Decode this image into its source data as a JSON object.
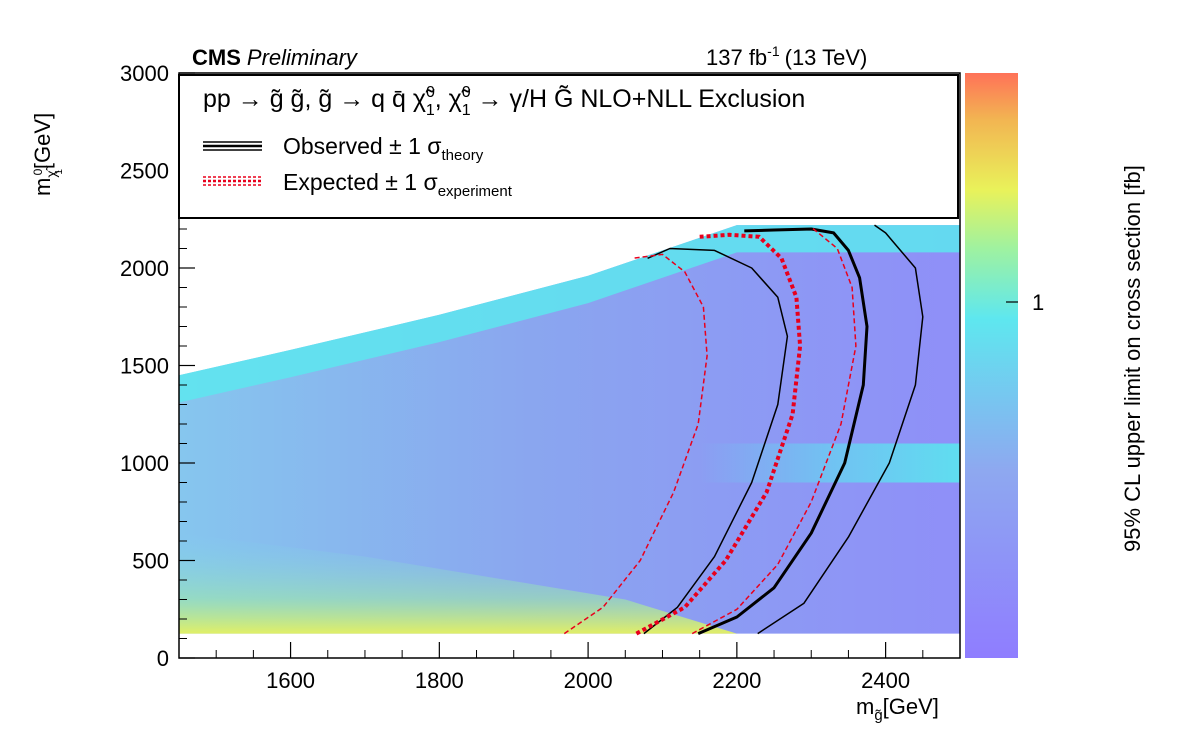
{
  "header": {
    "experiment": "CMS",
    "status": "Preliminary",
    "lumi_base": "137 fb",
    "lumi_sup": "-1",
    "energy": "(13 TeV)"
  },
  "legend": {
    "process": "pp → g̃ g̃, g̃ → q q̄ χ̃ , χ̃ → γ/H G̃  NLO+NLL Exclusion",
    "process_parts": {
      "p1": "pp → g̃ g̃, g̃ → q q̄ χ̃",
      "chi_sup": "0",
      "chi_sub": "1",
      "p2": ", χ̃",
      "p3": " → γ/H G̃  NLO+NLL Exclusion"
    },
    "observed": "Observed ± 1 σ",
    "observed_sub": "theory",
    "expected": "Expected ± 1 σ",
    "expected_sub": "experiment"
  },
  "axes": {
    "xlabel_main": "m",
    "xlabel_sub": "g̃",
    "xlabel_unit": "[GeV]",
    "ylabel_main": "m",
    "ylabel_sub": "χ̃",
    "ylabel_sub2": "1",
    "ylabel_sup": "0",
    "ylabel_unit": "[GeV]",
    "zlabel": "95% CL upper limit on cross section [fb]",
    "z_tick": "1"
  },
  "chart_data": {
    "type": "heatmap",
    "title": "",
    "xlabel": "m_g̃ [GeV]",
    "ylabel": "m_χ̃1^0 [GeV]",
    "zlabel": "95% CL upper limit on cross section [fb]",
    "xlim": [
      1450,
      2500
    ],
    "ylim": [
      0,
      3000
    ],
    "x_ticks": [
      "1600",
      "1800",
      "2000",
      "2200",
      "2400"
    ],
    "y_ticks": [
      "0",
      "500",
      "1000",
      "1500",
      "2000",
      "2500",
      "3000"
    ],
    "z_scale": "log",
    "z_ticks": [
      "1"
    ],
    "colormap": [
      "#8f7dff",
      "#8ea8f0",
      "#5ee7ef",
      "#e9f25a",
      "#f2b552",
      "#ff7258"
    ],
    "scanned_region_upper_edge": [
      [
        1450,
        1450
      ],
      [
        1600,
        1580
      ],
      [
        1800,
        1760
      ],
      [
        2000,
        1960
      ],
      [
        2200,
        2220
      ],
      [
        2500,
        2220
      ]
    ],
    "scanned_region_lower_edge": 125,
    "colour_regions": {
      "lower_left_high_limit": "yellow-green",
      "upper_left_edge": "cyan",
      "right_region_low_limit": "violet"
    },
    "series": [
      {
        "name": "Observed",
        "style": "black-thick",
        "points": [
          [
            2148,
            125
          ],
          [
            2200,
            210
          ],
          [
            2250,
            360
          ],
          [
            2300,
            640
          ],
          [
            2345,
            1000
          ],
          [
            2370,
            1400
          ],
          [
            2375,
            1700
          ],
          [
            2365,
            1950
          ],
          [
            2350,
            2090
          ],
          [
            2330,
            2180
          ],
          [
            2300,
            2200
          ],
          [
            2250,
            2195
          ],
          [
            2210,
            2190
          ]
        ]
      },
      {
        "name": "Observed + 1 σ theory",
        "style": "black-thin",
        "points": [
          [
            2228,
            125
          ],
          [
            2290,
            280
          ],
          [
            2350,
            620
          ],
          [
            2405,
            1000
          ],
          [
            2440,
            1400
          ],
          [
            2450,
            1750
          ],
          [
            2440,
            2000
          ],
          [
            2400,
            2180
          ],
          [
            2385,
            2220
          ]
        ]
      },
      {
        "name": "Observed − 1 σ theory",
        "style": "black-thin",
        "points": [
          [
            2075,
            125
          ],
          [
            2120,
            260
          ],
          [
            2170,
            520
          ],
          [
            2220,
            900
          ],
          [
            2255,
            1300
          ],
          [
            2268,
            1650
          ],
          [
            2255,
            1850
          ],
          [
            2220,
            2000
          ],
          [
            2170,
            2090
          ],
          [
            2110,
            2100
          ],
          [
            2080,
            2050
          ]
        ]
      },
      {
        "name": "Expected",
        "style": "red-thick-dashed",
        "points": [
          [
            2065,
            125
          ],
          [
            2130,
            260
          ],
          [
            2185,
            500
          ],
          [
            2240,
            850
          ],
          [
            2275,
            1250
          ],
          [
            2285,
            1600
          ],
          [
            2280,
            1850
          ],
          [
            2260,
            2050
          ],
          [
            2230,
            2160
          ],
          [
            2190,
            2170
          ],
          [
            2150,
            2160
          ]
        ]
      },
      {
        "name": "Expected + 1 σ experiment",
        "style": "red-thin-dashed",
        "points": [
          [
            2140,
            125
          ],
          [
            2200,
            250
          ],
          [
            2255,
            480
          ],
          [
            2300,
            800
          ],
          [
            2340,
            1200
          ],
          [
            2360,
            1600
          ],
          [
            2355,
            1900
          ],
          [
            2335,
            2100
          ],
          [
            2300,
            2210
          ]
        ]
      },
      {
        "name": "Expected − 1 σ experiment",
        "style": "red-thin-dashed",
        "points": [
          [
            1968,
            125
          ],
          [
            2020,
            260
          ],
          [
            2070,
            500
          ],
          [
            2115,
            850
          ],
          [
            2148,
            1200
          ],
          [
            2160,
            1550
          ],
          [
            2155,
            1800
          ],
          [
            2130,
            1980
          ],
          [
            2100,
            2070
          ],
          [
            2060,
            2050
          ]
        ]
      }
    ],
    "grid": false,
    "legend_position": "top"
  },
  "colors": {
    "observed": "#000000",
    "expected": "#e8001c",
    "frame": "#000000"
  }
}
